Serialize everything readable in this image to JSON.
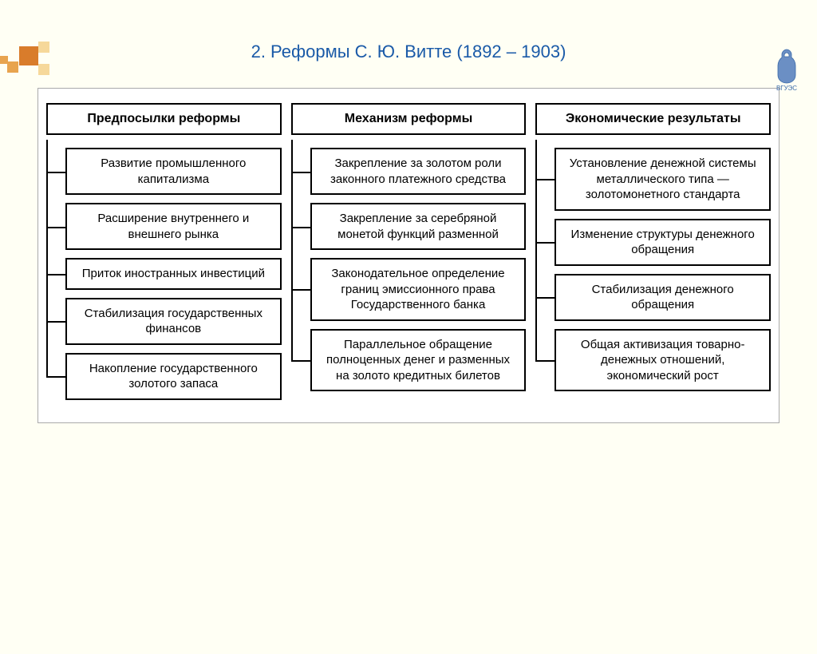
{
  "title": "2. Реформы С. Ю. Витте (1892 – 1903)",
  "logo_caption": "ВГУЭС",
  "colors": {
    "background": "#fffff4",
    "title_color": "#1a5aa8",
    "box_border": "#000000",
    "diagram_bg": "#ffffff",
    "diagram_border": "#aaaaaa",
    "deco1": "#d97c2b",
    "deco2": "#e8a44f",
    "deco3": "#f6d89a",
    "logo_color": "#3a6aa8"
  },
  "diagram": {
    "type": "tree",
    "columns": [
      {
        "header": "Предпосылки реформы",
        "items": [
          "Развитие промышленного капитализма",
          "Расширение внутреннего и внешнего рынка",
          "Приток иностранных инвестиций",
          "Стабилизация государственных финансов",
          "Накопление государственного золотого запаса"
        ]
      },
      {
        "header": "Механизм реформы",
        "items": [
          "Закрепление за золотом роли законного платежного средства",
          "Закрепление за серебряной монетой функций разменной",
          "Законодательное определение границ эмиссионного права Государственного банка",
          "Параллельное обращение полноценных денег и разменных на золото кредитных билетов"
        ]
      },
      {
        "header": "Экономические результаты",
        "items": [
          "Установление денежной системы металлического типа — золотомонетного стандарта",
          "Изменение структуры денежного обращения",
          "Стабилизация денежного обращения",
          "Общая активизация товарно-денежных отношений, экономический рост"
        ]
      }
    ]
  }
}
